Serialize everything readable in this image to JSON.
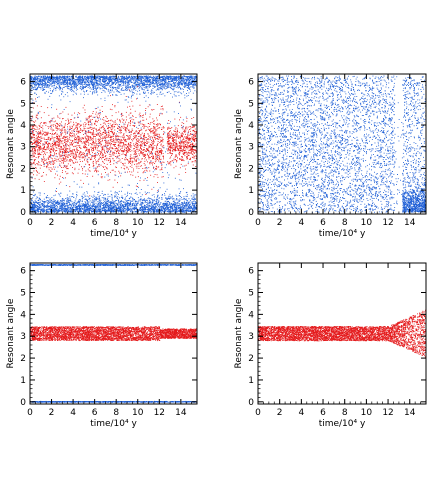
{
  "chart_data": [
    {
      "type": "scatter",
      "title": "",
      "xlabel": "time/10⁴ y",
      "ylabel": "Resonant angle",
      "xlim": [
        0,
        15.5
      ],
      "ylim": [
        -0.1,
        6.35
      ],
      "xticks": [
        "0",
        "2",
        "4",
        "6",
        "8",
        "10",
        "12",
        "14"
      ],
      "yticks": [
        "0",
        "1",
        "2",
        "3",
        "4",
        "5",
        "6"
      ],
      "grid": false,
      "series": [
        {
          "color": "#1f5fd6",
          "x_range": [
            0,
            15.5
          ],
          "bands": [
            [
              5.5,
              6.28
            ],
            [
              0,
              0.8
            ]
          ],
          "note_gap_x": [
            12.4,
            12.7
          ]
        },
        {
          "color": "#e41a1c",
          "x_range": [
            0,
            15.5
          ],
          "bands": [
            [
              1.2,
              5.0
            ]
          ],
          "center": 3.14
        }
      ]
    },
    {
      "type": "scatter",
      "title": "",
      "xlabel": "time/10⁴ y",
      "ylabel": "Resonant angle",
      "xlim": [
        0,
        15.5
      ],
      "ylim": [
        -0.1,
        6.35
      ],
      "xticks": [
        "0",
        "2",
        "4",
        "6",
        "8",
        "10",
        "12",
        "14"
      ],
      "yticks": [
        "0",
        "1",
        "2",
        "3",
        "4",
        "5",
        "6"
      ],
      "grid": false,
      "series": [
        {
          "color": "#1f5fd6",
          "x_range": [
            0,
            15.5
          ],
          "bands": [
            [
              0,
              6.28
            ]
          ],
          "gap_x": [
            12.6,
            13.3
          ],
          "late_band": [
            [
              0,
              1.2
            ]
          ]
        }
      ]
    },
    {
      "type": "scatter",
      "title": "",
      "xlabel": "time/10⁴ y",
      "ylabel": "Resonant angle",
      "xlim": [
        0,
        15.5
      ],
      "ylim": [
        -0.1,
        6.35
      ],
      "xticks": [
        "0",
        "2",
        "4",
        "6",
        "8",
        "10",
        "12",
        "14"
      ],
      "yticks": [
        "0",
        "1",
        "2",
        "3",
        "4",
        "5",
        "6"
      ],
      "grid": false,
      "series": [
        {
          "color": "#1f5fd6",
          "x_range": [
            0,
            15.5
          ],
          "values": [
            0.0,
            6.28
          ]
        },
        {
          "color": "#e41a1c",
          "x_range": [
            0,
            15.5
          ],
          "bands": [
            [
              2.85,
              3.45
            ]
          ],
          "center": 3.14
        }
      ]
    },
    {
      "type": "scatter",
      "title": "",
      "xlabel": "time/10⁴ y",
      "ylabel": "Resonant angle",
      "xlim": [
        0,
        15.5
      ],
      "ylim": [
        -0.1,
        6.35
      ],
      "xticks": [
        "0",
        "2",
        "4",
        "6",
        "8",
        "10",
        "12",
        "14"
      ],
      "yticks": [
        "0",
        "1",
        "2",
        "3",
        "4",
        "5",
        "6"
      ],
      "grid": false,
      "series": [
        {
          "color": "#e41a1c",
          "x_range": [
            0,
            15.5
          ],
          "bands": [
            [
              2.8,
              3.5
            ]
          ],
          "center": 3.14,
          "widening_after_x": 12,
          "late_band": [
            [
              2.3,
              4.0
            ]
          ]
        }
      ]
    }
  ]
}
